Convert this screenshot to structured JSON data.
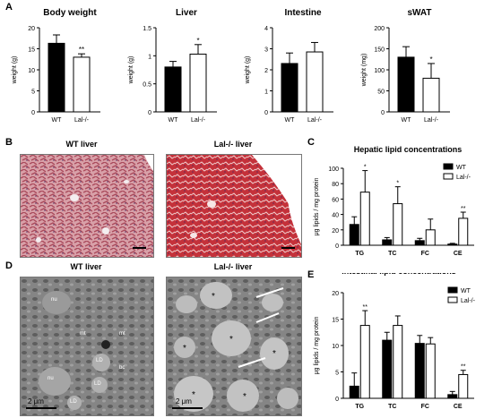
{
  "panels": {
    "A": {
      "letter": "A"
    },
    "B": {
      "letter": "B",
      "left_title": "WT liver",
      "right_title": "Lal-/- liver"
    },
    "C": {
      "letter": "C"
    },
    "D": {
      "letter": "D",
      "left_title": "WT liver",
      "right_title": "Lal-/- liver",
      "left_labels": [
        "nu",
        "nu",
        "LD",
        "LD",
        "mt",
        "LD",
        "mt",
        "bc"
      ],
      "scale_bar": "2 μm"
    },
    "E": {
      "letter": "E"
    }
  },
  "colors": {
    "wt": "#000000",
    "lal": "#ffffff",
    "liver_he_wt": "#c46a73",
    "liver_he_lal": "#c0392b",
    "em_gray": "#8c8c8c"
  },
  "chart_data": [
    {
      "type": "bar",
      "title": "Body weight",
      "categories": [
        "WT",
        "Lal-/-"
      ],
      "values": [
        16.3,
        13.0
      ],
      "errors": [
        2.0,
        0.8
      ],
      "ylabel": "weight (g)",
      "ylim": [
        0,
        20
      ],
      "yticks": [
        0,
        5,
        10,
        15,
        20
      ],
      "annotations": [
        "",
        "**"
      ]
    },
    {
      "type": "bar",
      "title": "Liver",
      "categories": [
        "WT",
        "Lal-/-"
      ],
      "values": [
        0.8,
        1.03
      ],
      "errors": [
        0.1,
        0.17
      ],
      "ylabel": "weight (g)",
      "ylim": [
        0,
        1.5
      ],
      "yticks": [
        0.0,
        0.5,
        1.0,
        1.5
      ],
      "annotations": [
        "",
        "*"
      ]
    },
    {
      "type": "bar",
      "title": "Intestine",
      "categories": [
        "WT",
        "Lal-/-"
      ],
      "values": [
        2.3,
        2.85
      ],
      "errors": [
        0.5,
        0.45
      ],
      "ylabel": "weight (g)",
      "ylim": [
        0,
        4
      ],
      "yticks": [
        0,
        1,
        2,
        3,
        4
      ],
      "annotations": [
        "",
        ""
      ]
    },
    {
      "type": "bar",
      "title": "sWAT",
      "categories": [
        "WT",
        "Lal-/-"
      ],
      "values": [
        130,
        80
      ],
      "errors": [
        25,
        35
      ],
      "ylabel": "weight (mg)",
      "ylim": [
        0,
        200
      ],
      "yticks": [
        0,
        50,
        100,
        150,
        200
      ],
      "annotations": [
        "",
        "*"
      ]
    },
    {
      "type": "bar",
      "title": "Hepatic lipid concentrations",
      "categories": [
        "TG",
        "TC",
        "FC",
        "CE"
      ],
      "series": [
        {
          "name": "WT",
          "values": [
            27,
            7,
            6,
            1.5
          ],
          "errors": [
            10,
            3,
            3,
            1
          ]
        },
        {
          "name": "Lal-/-",
          "values": [
            69,
            54,
            20,
            35
          ],
          "errors": [
            28,
            22,
            14,
            8
          ]
        }
      ],
      "ylabel": "μg lipids / mg protein",
      "ylim": [
        0,
        100
      ],
      "yticks": [
        0,
        20,
        40,
        60,
        80,
        100
      ],
      "annotations": [
        "*",
        "*",
        "",
        "**"
      ],
      "legend": "top-right"
    },
    {
      "type": "bar",
      "title": "Intestinal lipid concentrations",
      "categories": [
        "TG",
        "TC",
        "FC",
        "CE"
      ],
      "series": [
        {
          "name": "WT",
          "values": [
            2.3,
            11,
            10.4,
            0.7
          ],
          "errors": [
            2.5,
            1.5,
            1.5,
            0.6
          ]
        },
        {
          "name": "Lal-/-",
          "values": [
            13.8,
            13.8,
            10.3,
            4.5
          ],
          "errors": [
            2.8,
            1.8,
            1.2,
            0.8
          ]
        }
      ],
      "ylabel": "μg lipids / mg protein",
      "ylim": [
        0,
        20
      ],
      "yticks": [
        0,
        5,
        10,
        15,
        20
      ],
      "annotations": [
        "**",
        "",
        "",
        "**"
      ],
      "legend": "top-right"
    }
  ]
}
